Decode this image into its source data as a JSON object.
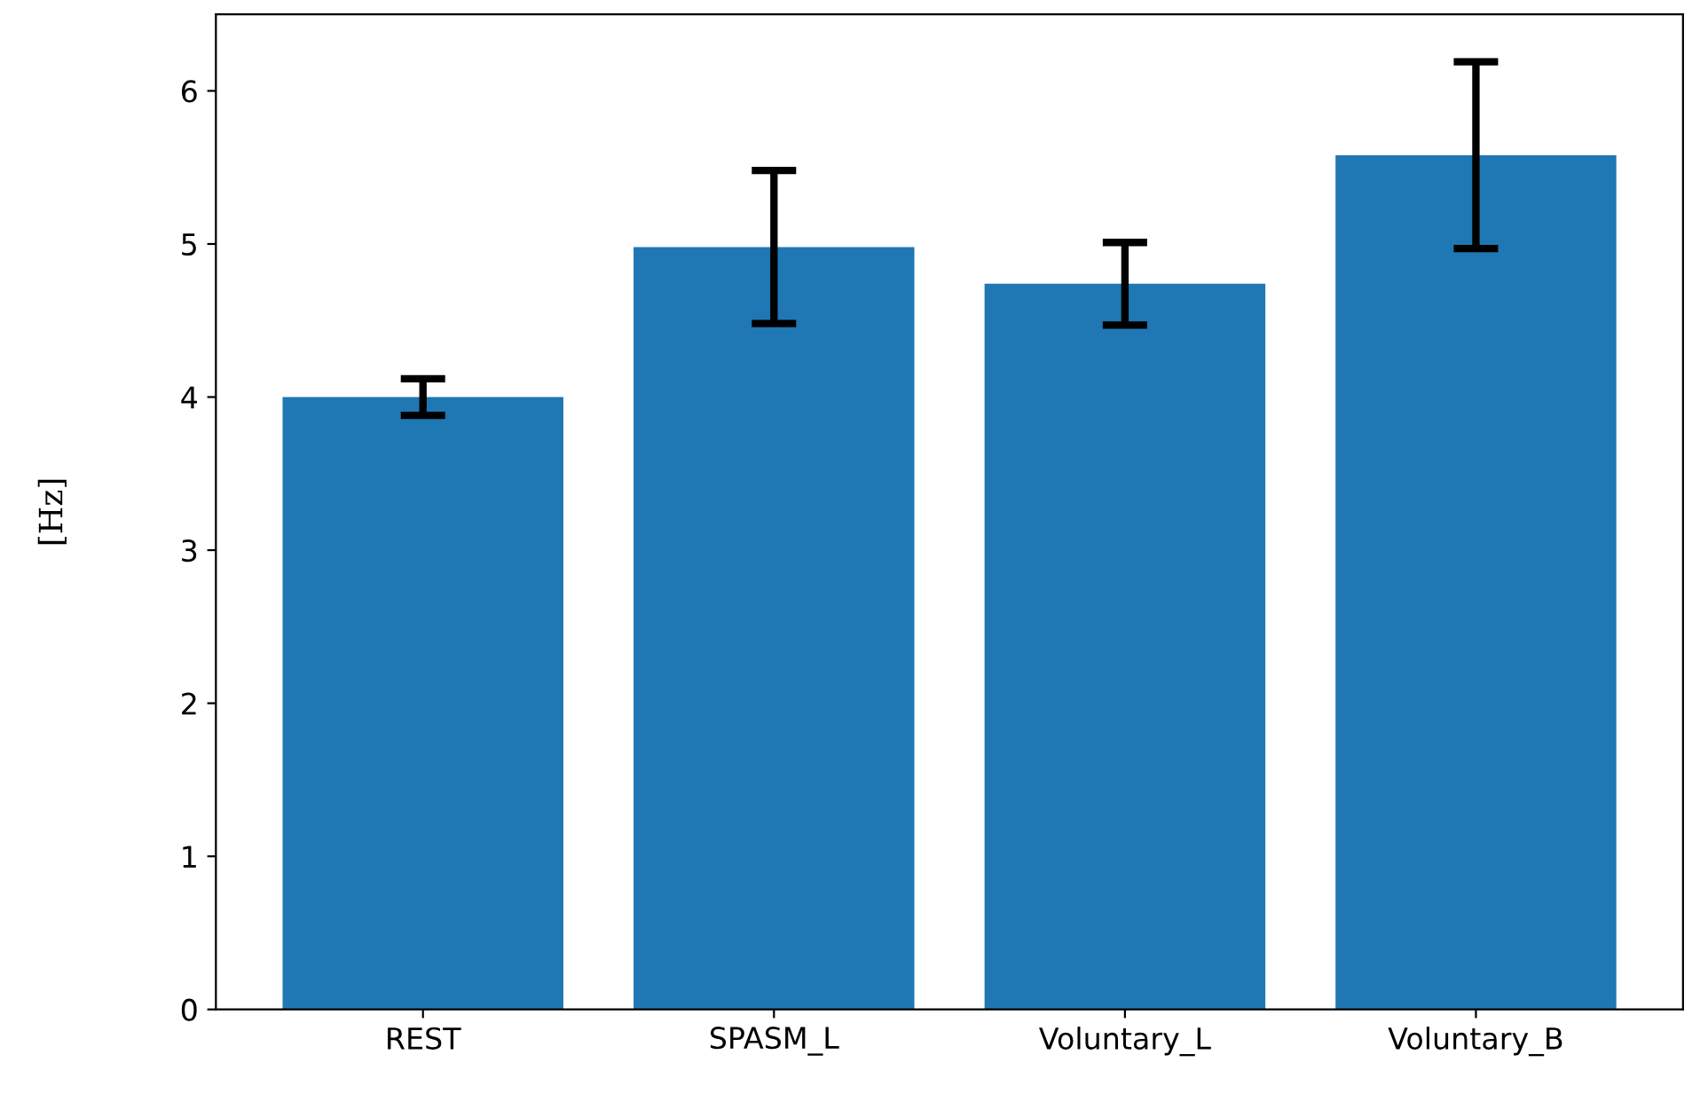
{
  "chart_data": {
    "type": "bar",
    "ylabel": "[Hz]",
    "categories": [
      "REST",
      "SPASM_L",
      "Voluntary_L",
      "Voluntary_B"
    ],
    "values": [
      4.0,
      4.98,
      4.74,
      5.58
    ],
    "errors": [
      0.12,
      0.5,
      0.27,
      0.61
    ],
    "color": "#1f77b4",
    "ylim": [
      0,
      6.5
    ],
    "yticks": [
      0,
      1,
      2,
      3,
      4,
      5,
      6
    ],
    "grid": false
  }
}
